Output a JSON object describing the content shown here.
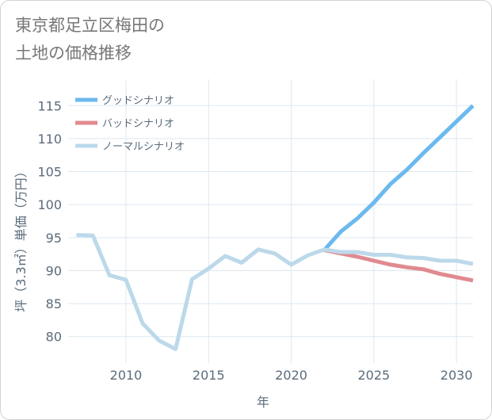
{
  "title": "東京都足立区梅田の\n土地の価格推移",
  "chart_data": {
    "type": "line",
    "xlabel": "年",
    "ylabel": "坪（3.3㎡）単価（万円）",
    "xlim": [
      2006.5,
      2031
    ],
    "ylim": [
      76,
      119
    ],
    "grid": true,
    "legend_position": "top-left",
    "x_ticks": [
      2010,
      2015,
      2020,
      2025,
      2030
    ],
    "y_ticks": [
      80,
      85,
      90,
      95,
      100,
      105,
      110,
      115
    ],
    "series": [
      {
        "name": "グッドシナリオ",
        "color": "#6bb9ee",
        "x": [
          2022,
          2023,
          2024,
          2025,
          2026,
          2027,
          2028,
          2029,
          2030,
          2031
        ],
        "y": [
          93.1,
          95.9,
          97.9,
          100.3,
          103.1,
          105.3,
          107.8,
          110.2,
          112.6,
          115.0
        ]
      },
      {
        "name": "バッドシナリオ",
        "color": "#e08a90",
        "x": [
          2022,
          2023,
          2024,
          2025,
          2026,
          2027,
          2028,
          2029,
          2030,
          2031
        ],
        "y": [
          93.1,
          92.6,
          92.1,
          91.5,
          90.9,
          90.5,
          90.2,
          89.5,
          89.0,
          88.5
        ]
      },
      {
        "name": "ノーマルシナリオ",
        "color": "#bcd9ea",
        "x": [
          2007,
          2008,
          2009,
          2010,
          2011,
          2012,
          2013,
          2014,
          2015,
          2016,
          2017,
          2018,
          2019,
          2020,
          2021,
          2022,
          2023,
          2024,
          2025,
          2026,
          2027,
          2028,
          2029,
          2030,
          2031
        ],
        "y": [
          95.4,
          95.3,
          89.3,
          88.6,
          82.0,
          79.4,
          78.1,
          88.7,
          90.3,
          92.2,
          91.2,
          93.2,
          92.6,
          90.9,
          92.3,
          93.2,
          92.8,
          92.8,
          92.4,
          92.4,
          92.0,
          91.9,
          91.5,
          91.5,
          91.0
        ]
      }
    ]
  }
}
